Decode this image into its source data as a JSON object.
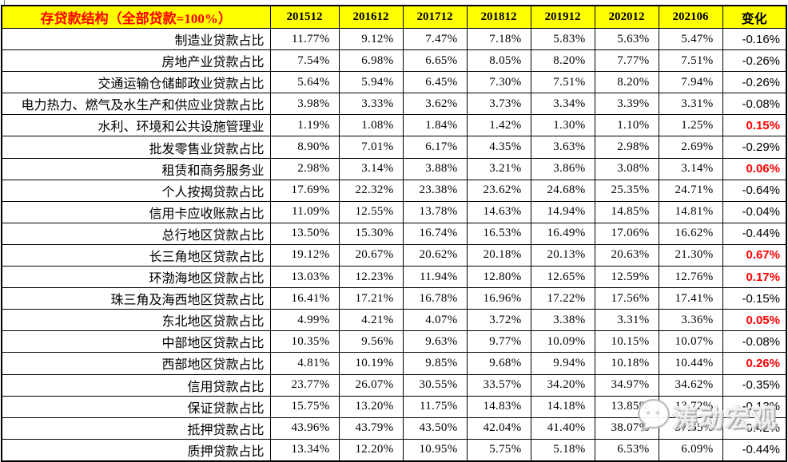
{
  "chart_data": {
    "type": "table",
    "title": "存贷款结构（全部贷款=100%）",
    "columns": [
      "201512",
      "201612",
      "201712",
      "201812",
      "201912",
      "202012",
      "202106",
      "变化"
    ],
    "rows": [
      {
        "label": "制造业贷款占比",
        "values": [
          "11.77%",
          "9.12%",
          "7.47%",
          "7.18%",
          "5.83%",
          "5.63%",
          "5.47%"
        ],
        "change": "-0.16%",
        "up": false
      },
      {
        "label": "房地产业贷款占比",
        "values": [
          "7.54%",
          "6.98%",
          "6.65%",
          "8.05%",
          "8.20%",
          "7.77%",
          "7.51%"
        ],
        "change": "-0.26%",
        "up": false
      },
      {
        "label": "交通运输仓储邮政业贷款占比",
        "values": [
          "5.64%",
          "5.94%",
          "6.45%",
          "7.30%",
          "7.51%",
          "8.20%",
          "7.94%"
        ],
        "change": "-0.26%",
        "up": false
      },
      {
        "label": "电力热力、燃气及水生产和供应业贷款占比",
        "values": [
          "3.98%",
          "3.33%",
          "3.62%",
          "3.73%",
          "3.34%",
          "3.39%",
          "3.31%"
        ],
        "change": "-0.08%",
        "up": false
      },
      {
        "label": "水利、环境和公共设施管理业",
        "values": [
          "1.19%",
          "1.08%",
          "1.84%",
          "1.42%",
          "1.30%",
          "1.10%",
          "1.25%"
        ],
        "change": "0.15%",
        "up": true
      },
      {
        "label": "批发零售业贷款占比",
        "values": [
          "8.90%",
          "7.01%",
          "6.17%",
          "4.35%",
          "3.63%",
          "2.98%",
          "2.69%"
        ],
        "change": "-0.29%",
        "up": false
      },
      {
        "label": "租赁和商务服务业",
        "values": [
          "2.98%",
          "3.14%",
          "3.88%",
          "3.21%",
          "3.86%",
          "3.08%",
          "3.14%"
        ],
        "change": "0.06%",
        "up": true
      },
      {
        "label": "个人按揭贷款占比",
        "values": [
          "17.69%",
          "22.32%",
          "23.38%",
          "23.62%",
          "24.68%",
          "25.35%",
          "24.71%"
        ],
        "change": "-0.64%",
        "up": false
      },
      {
        "label": "信用卡应收账款占比",
        "values": [
          "11.09%",
          "12.55%",
          "13.78%",
          "14.63%",
          "14.94%",
          "14.85%",
          "14.81%"
        ],
        "change": "-0.04%",
        "up": false
      },
      {
        "label": "总行地区贷款占比",
        "values": [
          "13.50%",
          "15.30%",
          "16.74%",
          "16.53%",
          "16.49%",
          "17.06%",
          "16.62%"
        ],
        "change": "-0.44%",
        "up": false
      },
      {
        "label": "长三角地区贷款占比",
        "values": [
          "19.12%",
          "20.67%",
          "20.62%",
          "20.18%",
          "20.13%",
          "20.63%",
          "21.30%"
        ],
        "change": "0.67%",
        "up": true
      },
      {
        "label": "环渤海地区贷款占比",
        "values": [
          "13.03%",
          "12.23%",
          "11.94%",
          "12.80%",
          "12.65%",
          "12.59%",
          "12.76%"
        ],
        "change": "0.17%",
        "up": true
      },
      {
        "label": "珠三角及海西地区贷款占比",
        "values": [
          "16.41%",
          "17.21%",
          "16.78%",
          "16.96%",
          "17.22%",
          "17.56%",
          "17.41%"
        ],
        "change": "-0.15%",
        "up": false
      },
      {
        "label": "东北地区贷款占比",
        "values": [
          "4.99%",
          "4.21%",
          "4.07%",
          "3.72%",
          "3.38%",
          "3.31%",
          "3.36%"
        ],
        "change": "0.05%",
        "up": true
      },
      {
        "label": "中部地区贷款占比",
        "values": [
          "10.35%",
          "9.56%",
          "9.63%",
          "9.77%",
          "10.09%",
          "10.15%",
          "10.07%"
        ],
        "change": "-0.08%",
        "up": false
      },
      {
        "label": "西部地区贷款占比",
        "values": [
          "4.81%",
          "10.19%",
          "9.85%",
          "9.68%",
          "9.94%",
          "10.18%",
          "10.44%"
        ],
        "change": "0.26%",
        "up": true
      },
      {
        "label": "信用贷款占比",
        "values": [
          "23.77%",
          "26.07%",
          "30.55%",
          "33.57%",
          "34.20%",
          "34.97%",
          "34.62%"
        ],
        "change": "-0.35%",
        "up": false
      },
      {
        "label": "保证贷款占比",
        "values": [
          "15.75%",
          "13.20%",
          "11.75%",
          "14.83%",
          "14.18%",
          "13.85%",
          "13.72%"
        ],
        "change": "-0.13%",
        "up": false
      },
      {
        "label": "抵押贷款占比",
        "values": [
          "43.96%",
          "43.79%",
          "43.50%",
          "42.04%",
          "41.40%",
          "38.07%",
          "37.65%"
        ],
        "change": "-0.42%",
        "up": false
      },
      {
        "label": "质押贷款占比",
        "values": [
          "13.34%",
          "12.20%",
          "10.95%",
          "5.75%",
          "5.18%",
          "6.53%",
          "6.09%"
        ],
        "change": "-0.44%",
        "up": false
      }
    ]
  },
  "watermark": {
    "text": "涛动宏观"
  },
  "colors": {
    "header_bg": "#FFFF00",
    "header_title_text": "#FF0000",
    "header_text": "#000000",
    "positive_change_text": "#FF0000",
    "body_text": "#000000",
    "grid": "#000000"
  }
}
